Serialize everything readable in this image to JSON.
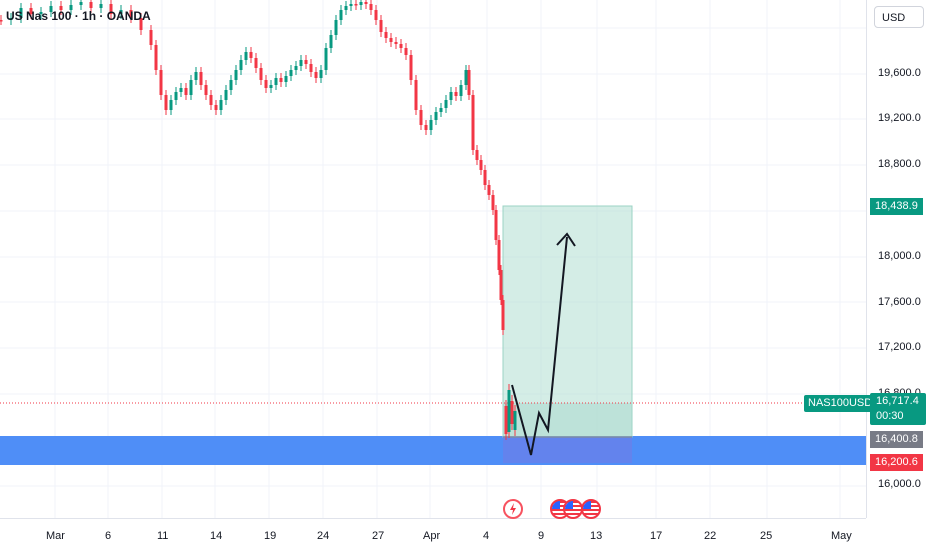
{
  "header": {
    "title": "US Nas 100 · 1h · OANDA",
    "currency": "USD"
  },
  "price_axis": {
    "ticks": [
      "19,600.0",
      "19,200.0",
      "18,800.0",
      "18,000.0",
      "17,600.0",
      "17,200.0",
      "16,800.0",
      "16,000.0"
    ]
  },
  "time_axis": {
    "ticks": [
      "Mar",
      "6",
      "11",
      "14",
      "19",
      "24",
      "27",
      "Apr",
      "4",
      "9",
      "13",
      "17",
      "22",
      "25",
      "May"
    ]
  },
  "price_tags": {
    "target": "18,438.9",
    "symbol": "NAS100USD",
    "last_price": "16,717.4",
    "countdown": "00:30",
    "entry": "16,400.8",
    "stop": "16,200.6"
  },
  "colors": {
    "up": "#089981",
    "down": "#f23645",
    "profit_zone": "#b7e1d6",
    "stop_zone": "#6c7fe8",
    "support_band": "#4f8ef7",
    "entry_tag": "#787b86",
    "stop_tag": "#f23645"
  },
  "events": {
    "icons": [
      "lightning-icon",
      "us-flag-icon",
      "us-flag-icon",
      "us-flag-icon"
    ]
  }
}
